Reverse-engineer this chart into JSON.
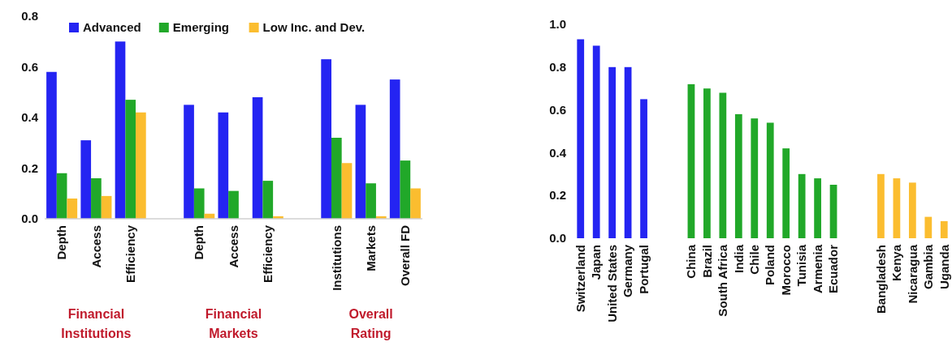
{
  "chart_data": [
    {
      "type": "bar",
      "categories": [
        "Depth",
        "Access",
        "Efficiency",
        null,
        "Depth",
        "Access",
        "Efficiency",
        null,
        "Institutions",
        "Markets",
        "Overall FD"
      ],
      "series": [
        {
          "name": "Advanced",
          "color": "#2424f2",
          "values": [
            0.58,
            0.31,
            0.7,
            null,
            0.45,
            0.42,
            0.48,
            null,
            0.63,
            0.45,
            0.55
          ]
        },
        {
          "name": "Emerging",
          "color": "#21a829",
          "values": [
            0.18,
            0.16,
            0.47,
            null,
            0.12,
            0.11,
            0.15,
            null,
            0.32,
            0.14,
            0.23
          ]
        },
        {
          "name": "Low Inc. and Dev.",
          "color": "#fbbd2f",
          "values": [
            0.08,
            0.09,
            0.42,
            null,
            0.02,
            0,
            0.01,
            null,
            0.22,
            0.01,
            0.12
          ]
        }
      ],
      "ylim": [
        0,
        0.8
      ],
      "yticks": [
        "0.0",
        0.2,
        0.4,
        0.6,
        0.8
      ],
      "grid": false,
      "legend": "top",
      "annotations": [
        "Financial Institutions",
        "Financial Markets",
        "Overall Rating"
      ]
    },
    {
      "type": "bar",
      "categories": [
        "Switzerland",
        "Japan",
        "United States",
        "Germany",
        "Portugal",
        null,
        null,
        "China",
        "Brazil",
        "South Africa",
        "India",
        "Chile",
        "Poland",
        "Morocco",
        "Tunisia",
        "Armenia",
        "Ecuador",
        null,
        null,
        "Bangladesh",
        "Kenya",
        "Nicaragua",
        "Gambia",
        "Uganda"
      ],
      "values": [
        0.93,
        0.9,
        0.8,
        0.8,
        0.65,
        null,
        null,
        0.72,
        0.7,
        0.68,
        0.58,
        0.56,
        0.54,
        0.42,
        0.3,
        0.28,
        0.25,
        null,
        null,
        0.3,
        0.28,
        0.26,
        0.1,
        0.08
      ],
      "colors": [
        "#2424f2",
        "#2424f2",
        "#2424f2",
        "#2424f2",
        "#2424f2",
        null,
        null,
        "#21a829",
        "#21a829",
        "#21a829",
        "#21a829",
        "#21a829",
        "#21a829",
        "#21a829",
        "#21a829",
        "#21a829",
        "#21a829",
        null,
        null,
        "#fbbd2f",
        "#fbbd2f",
        "#fbbd2f",
        "#fbbd2f",
        "#fbbd2f"
      ],
      "ylim": [
        0,
        1.0
      ],
      "yticks": [
        {
          "value": 0,
          "label": "0.0"
        },
        0.2,
        0.4,
        0.6,
        0.8,
        {
          "value": 1.0,
          "label": "1.0"
        }
      ],
      "grid": false
    }
  ]
}
